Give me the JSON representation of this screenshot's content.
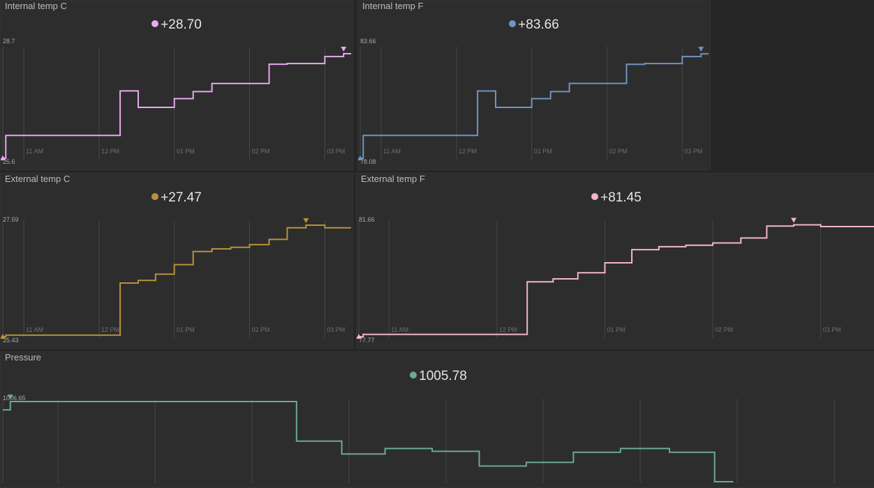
{
  "panels": [
    {
      "id": "internal-c",
      "title": "Internal temp C",
      "current": "+28.70",
      "color": "#e8a8f0",
      "max_label": "28.7",
      "min_label": "25.6",
      "ticks": [
        "11 AM",
        "12 PM",
        "01 PM",
        "02 PM",
        "03 PM"
      ]
    },
    {
      "id": "internal-f",
      "title": "Internal temp F",
      "current": "+83.66",
      "color": "#6f94c4",
      "max_label": "83.66",
      "min_label": "78.08",
      "ticks": [
        "11 AM",
        "12 PM",
        "01 PM",
        "02 PM",
        "03 PM"
      ]
    },
    {
      "id": "external-c",
      "title": "External temp C",
      "current": "+27.47",
      "color": "#b8923a",
      "max_label": "27.59",
      "min_label": "25.43",
      "ticks": [
        "11 AM",
        "12 PM",
        "01 PM",
        "02 PM",
        "03 PM"
      ]
    },
    {
      "id": "external-f",
      "title": "External temp F",
      "current": "+81.45",
      "color": "#f2b7c3",
      "max_label": "81.66",
      "min_label": "77.77",
      "ticks": [
        "11 AM",
        "12 PM",
        "01 PM",
        "02 PM",
        "03 PM"
      ]
    },
    {
      "id": "pressure",
      "title": "Pressure",
      "current": "1005.78",
      "color": "#6ba89a",
      "max_label": "1006.65",
      "min_label": "",
      "ticks": []
    }
  ],
  "chart_data": [
    {
      "type": "line",
      "title": "Internal temp C",
      "x_unit": "hours (10.5 = 10:30 AM)",
      "xlim": [
        10.72,
        15.35
      ],
      "ylim": [
        25.6,
        28.7
      ],
      "x_ticks": [
        11,
        12,
        13,
        14,
        15
      ],
      "x_tick_labels": [
        "11 AM",
        "12 PM",
        "01 PM",
        "02 PM",
        "03 PM"
      ],
      "step": true,
      "points": [
        [
          10.72,
          25.6
        ],
        [
          10.76,
          25.6
        ],
        [
          10.76,
          26.25
        ],
        [
          12.28,
          26.25
        ],
        [
          12.28,
          27.52
        ],
        [
          12.52,
          27.52
        ],
        [
          12.52,
          27.05
        ],
        [
          13.0,
          27.05
        ],
        [
          13.0,
          27.3
        ],
        [
          13.25,
          27.3
        ],
        [
          13.25,
          27.5
        ],
        [
          13.5,
          27.5
        ],
        [
          13.5,
          27.73
        ],
        [
          14.26,
          27.73
        ],
        [
          14.26,
          28.28
        ],
        [
          14.5,
          28.28
        ],
        [
          14.5,
          28.3
        ],
        [
          15.0,
          28.3
        ],
        [
          15.0,
          28.5
        ],
        [
          15.25,
          28.5
        ],
        [
          15.25,
          28.58
        ],
        [
          15.35,
          28.58
        ]
      ]
    },
    {
      "type": "line",
      "title": "Internal temp F",
      "x_unit": "hours",
      "xlim": [
        10.72,
        15.35
      ],
      "ylim": [
        78.08,
        83.66
      ],
      "x_ticks": [
        11,
        12,
        13,
        14,
        15
      ],
      "x_tick_labels": [
        "11 AM",
        "12 PM",
        "01 PM",
        "02 PM",
        "03 PM"
      ],
      "step": true,
      "points": [
        [
          10.72,
          78.08
        ],
        [
          10.76,
          78.08
        ],
        [
          10.76,
          79.25
        ],
        [
          12.28,
          79.25
        ],
        [
          12.28,
          81.53
        ],
        [
          12.52,
          81.53
        ],
        [
          12.52,
          80.69
        ],
        [
          13.0,
          80.69
        ],
        [
          13.0,
          81.14
        ],
        [
          13.25,
          81.14
        ],
        [
          13.25,
          81.5
        ],
        [
          13.5,
          81.5
        ],
        [
          13.5,
          81.92
        ],
        [
          14.26,
          81.92
        ],
        [
          14.26,
          82.9
        ],
        [
          14.5,
          82.9
        ],
        [
          14.5,
          82.94
        ],
        [
          15.0,
          82.94
        ],
        [
          15.0,
          83.3
        ],
        [
          15.25,
          83.3
        ],
        [
          15.25,
          83.44
        ],
        [
          15.35,
          83.44
        ]
      ]
    },
    {
      "type": "line",
      "title": "External temp C",
      "x_unit": "hours",
      "xlim": [
        10.72,
        15.35
      ],
      "ylim": [
        25.43,
        27.59
      ],
      "x_ticks": [
        11,
        12,
        13,
        14,
        15
      ],
      "x_tick_labels": [
        "11 AM",
        "12 PM",
        "01 PM",
        "02 PM",
        "03 PM"
      ],
      "step": true,
      "points": [
        [
          10.72,
          25.43
        ],
        [
          10.76,
          25.43
        ],
        [
          10.76,
          25.46
        ],
        [
          12.28,
          25.46
        ],
        [
          12.28,
          26.45
        ],
        [
          12.52,
          26.45
        ],
        [
          12.52,
          26.5
        ],
        [
          12.75,
          26.5
        ],
        [
          12.75,
          26.62
        ],
        [
          13.0,
          26.62
        ],
        [
          13.0,
          26.8
        ],
        [
          13.25,
          26.8
        ],
        [
          13.25,
          27.05
        ],
        [
          13.5,
          27.05
        ],
        [
          13.5,
          27.1
        ],
        [
          13.75,
          27.1
        ],
        [
          13.75,
          27.13
        ],
        [
          14.0,
          27.13
        ],
        [
          14.0,
          27.18
        ],
        [
          14.26,
          27.18
        ],
        [
          14.26,
          27.28
        ],
        [
          14.5,
          27.28
        ],
        [
          14.5,
          27.5
        ],
        [
          14.75,
          27.5
        ],
        [
          14.75,
          27.55
        ],
        [
          15.0,
          27.55
        ],
        [
          15.0,
          27.5
        ],
        [
          15.35,
          27.5
        ]
      ]
    },
    {
      "type": "line",
      "title": "External temp F",
      "x_unit": "hours",
      "xlim": [
        10.72,
        15.5
      ],
      "ylim": [
        77.77,
        81.66
      ],
      "x_ticks": [
        11,
        12,
        13,
        14,
        15
      ],
      "x_tick_labels": [
        "11 AM",
        "12 PM",
        "01 PM",
        "02 PM",
        "03 PM"
      ],
      "step": true,
      "points": [
        [
          10.72,
          77.77
        ],
        [
          10.76,
          77.77
        ],
        [
          10.76,
          77.85
        ],
        [
          12.28,
          77.85
        ],
        [
          12.28,
          79.65
        ],
        [
          12.52,
          79.65
        ],
        [
          12.52,
          79.75
        ],
        [
          12.75,
          79.75
        ],
        [
          12.75,
          79.96
        ],
        [
          13.0,
          79.96
        ],
        [
          13.0,
          80.3
        ],
        [
          13.25,
          80.3
        ],
        [
          13.25,
          80.75
        ],
        [
          13.5,
          80.75
        ],
        [
          13.5,
          80.85
        ],
        [
          13.75,
          80.85
        ],
        [
          13.75,
          80.9
        ],
        [
          14.0,
          80.9
        ],
        [
          14.0,
          80.98
        ],
        [
          14.26,
          80.98
        ],
        [
          14.26,
          81.15
        ],
        [
          14.5,
          81.15
        ],
        [
          14.5,
          81.56
        ],
        [
          14.75,
          81.56
        ],
        [
          14.75,
          81.6
        ],
        [
          15.0,
          81.6
        ],
        [
          15.0,
          81.54
        ],
        [
          15.5,
          81.54
        ]
      ]
    },
    {
      "type": "line",
      "title": "Pressure",
      "x_unit": "hours",
      "xlim": [
        10.72,
        15.35
      ],
      "ylim": [
        1005.78,
        1006.65
      ],
      "x_ticks": [],
      "x_tick_labels": [],
      "step": true,
      "points": [
        [
          10.72,
          1006.56
        ],
        [
          10.76,
          1006.56
        ],
        [
          10.76,
          1006.65
        ],
        [
          12.28,
          1006.65
        ],
        [
          12.28,
          1006.22
        ],
        [
          12.52,
          1006.22
        ],
        [
          12.52,
          1006.08
        ],
        [
          12.75,
          1006.08
        ],
        [
          12.75,
          1006.14
        ],
        [
          13.0,
          1006.14
        ],
        [
          13.0,
          1006.11
        ],
        [
          13.25,
          1006.11
        ],
        [
          13.25,
          1005.95
        ],
        [
          13.5,
          1005.95
        ],
        [
          13.5,
          1005.99
        ],
        [
          13.75,
          1005.99
        ],
        [
          13.75,
          1006.1
        ],
        [
          14.0,
          1006.1
        ],
        [
          14.0,
          1006.14
        ],
        [
          14.26,
          1006.14
        ],
        [
          14.26,
          1006.1
        ],
        [
          14.5,
          1006.1
        ],
        [
          14.5,
          1005.78
        ],
        [
          14.6,
          1005.78
        ]
      ]
    }
  ]
}
